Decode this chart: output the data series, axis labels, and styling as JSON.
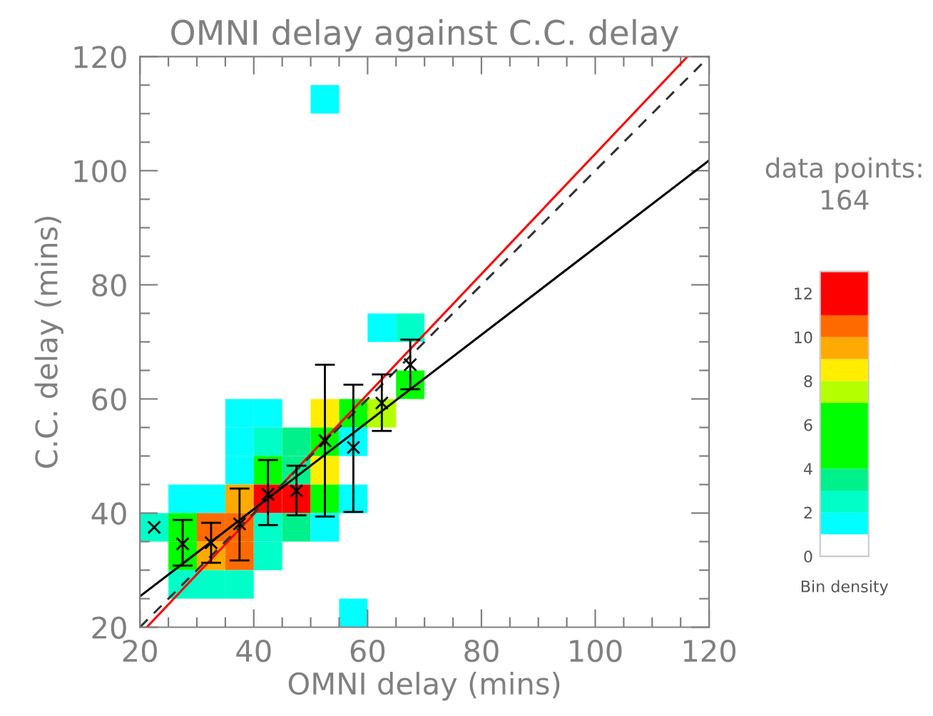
{
  "chart_data": {
    "type": "scatter",
    "title": "OMNI delay against C.C. delay",
    "xlabel": "OMNI delay (mins)",
    "ylabel": "C.C. delay (mins)",
    "clabel": "Bin density",
    "annotations": [
      "data points:\n164"
    ],
    "xlim": [
      20,
      120
    ],
    "ylim": [
      20,
      120
    ],
    "xticks": [
      20,
      {
        "value": 25,
        "label": null
      },
      {
        "value": 30,
        "label": null
      },
      {
        "value": 35,
        "label": null
      },
      40,
      {
        "value": 45,
        "label": null
      },
      {
        "value": 50,
        "label": null
      },
      {
        "value": 55,
        "label": null
      },
      60,
      {
        "value": 65,
        "label": null
      },
      {
        "value": 70,
        "label": null
      },
      {
        "value": 75,
        "label": null
      },
      80,
      {
        "value": 85,
        "label": null
      },
      {
        "value": 90,
        "label": null
      },
      {
        "value": 95,
        "label": null
      },
      100,
      {
        "value": 105,
        "label": null
      },
      {
        "value": 110,
        "label": null
      },
      {
        "value": 115,
        "label": null
      },
      120
    ],
    "yticks": [
      20,
      {
        "value": 25,
        "label": null
      },
      {
        "value": 30,
        "label": null
      },
      {
        "value": 35,
        "label": null
      },
      40,
      {
        "value": 45,
        "label": null
      },
      {
        "value": 50,
        "label": null
      },
      {
        "value": 55,
        "label": null
      },
      60,
      {
        "value": 65,
        "label": null
      },
      {
        "value": 70,
        "label": null
      },
      {
        "value": 75,
        "label": null
      },
      80,
      {
        "value": 85,
        "label": null
      },
      {
        "value": 90,
        "label": null
      },
      {
        "value": 95,
        "label": null
      },
      100,
      {
        "value": 105,
        "label": null
      },
      {
        "value": 110,
        "label": null
      },
      {
        "value": 115,
        "label": null
      },
      120
    ],
    "clim": [
      0,
      13
    ],
    "cticks": [
      0,
      2,
      4,
      6,
      8,
      10,
      12
    ],
    "grid": false,
    "legend": false,
    "series": [
      {
        "marker": "square",
        "colors": [
          "#00ffc8",
          "#00ffff",
          "#00ff00",
          "#00ff00",
          "#00ffc8",
          "#00ffff",
          "#ff6a00",
          "#ffaa00",
          "#00ffc8",
          "#00ffff",
          "#00ffff",
          "#00ffff",
          "#ffaa00",
          "#ff6a00",
          "#ff6a00",
          "#00ffc8",
          "#00ffff",
          "#00ffc8",
          "#00ff00",
          "#ff0000",
          "#00ffc8",
          "#00ffc8",
          "#00f08c",
          "#00f08c",
          "#ff0000",
          "#00f08c",
          "#00ffff",
          "#ffee00",
          "#00ff00",
          "#ffee00",
          "#00ff00",
          "#00ffff",
          "#00ff00",
          "#00ffff",
          "#00ffff",
          "#00ffff",
          "#00ffff",
          "#b4ff00",
          "#00ffc8",
          "#00ff00"
        ],
        "x": [
          22.5,
          27.5,
          27.5,
          27.5,
          27.5,
          32.5,
          32.5,
          32.5,
          32.5,
          37.5,
          37.5,
          37.5,
          37.5,
          37.5,
          37.5,
          37.5,
          42.5,
          42.5,
          42.5,
          42.5,
          42.5,
          42.5,
          47.5,
          47.5,
          47.5,
          47.5,
          52.5,
          52.5,
          52.5,
          52.5,
          52.5,
          52.5,
          57.5,
          57.5,
          57.5,
          57.5,
          62.5,
          62.5,
          67.5,
          67.5
        ],
        "values": [
          37.5,
          42.5,
          37.5,
          32.5,
          27.5,
          42.5,
          37.5,
          32.5,
          27.5,
          57.5,
          52.5,
          47.5,
          42.5,
          37.5,
          32.5,
          27.5,
          57.5,
          52.5,
          47.5,
          42.5,
          37.5,
          32.5,
          52.5,
          47.5,
          42.5,
          37.5,
          112.5,
          57.5,
          52.5,
          47.5,
          42.5,
          37.5,
          57.5,
          52.5,
          42.5,
          22.5,
          72.5,
          57.5,
          72.5,
          62.5
        ]
      },
      {
        "type": "scatter",
        "marker": "cross",
        "color": "#000000",
        "x": [
          22.5,
          27.5,
          32.5,
          37.5,
          42.5,
          47.5,
          52.5,
          57.5,
          62.5,
          67.5
        ],
        "values": [
          37.5,
          34.6,
          34.8,
          38.1,
          43.3,
          43.9,
          52.7,
          51.5,
          59.3,
          66.0
        ],
        "errors": [
          null,
          [
            30.8,
            38.8
          ],
          [
            31.3,
            38.3
          ],
          [
            31.7,
            44.3
          ],
          [
            37.9,
            49.3
          ],
          [
            39.6,
            48.3
          ],
          [
            39.4,
            66.0
          ],
          [
            40.2,
            62.5
          ],
          [
            54.4,
            64.3
          ],
          [
            61.7,
            70.4
          ]
        ]
      },
      {
        "type": "line",
        "color": "#ff0000",
        "line_style": "solid",
        "x": [
          21.2,
          116.2
        ],
        "values": [
          20,
          120
        ]
      },
      {
        "type": "line",
        "color": "#333333",
        "line_style": "dashed",
        "x": [
          20,
          120
        ],
        "values": [
          20,
          120
        ]
      },
      {
        "type": "line",
        "color": "#000000",
        "line_style": "solid",
        "x": [
          20,
          120
        ],
        "values": [
          25.4,
          101.8
        ]
      }
    ]
  }
}
